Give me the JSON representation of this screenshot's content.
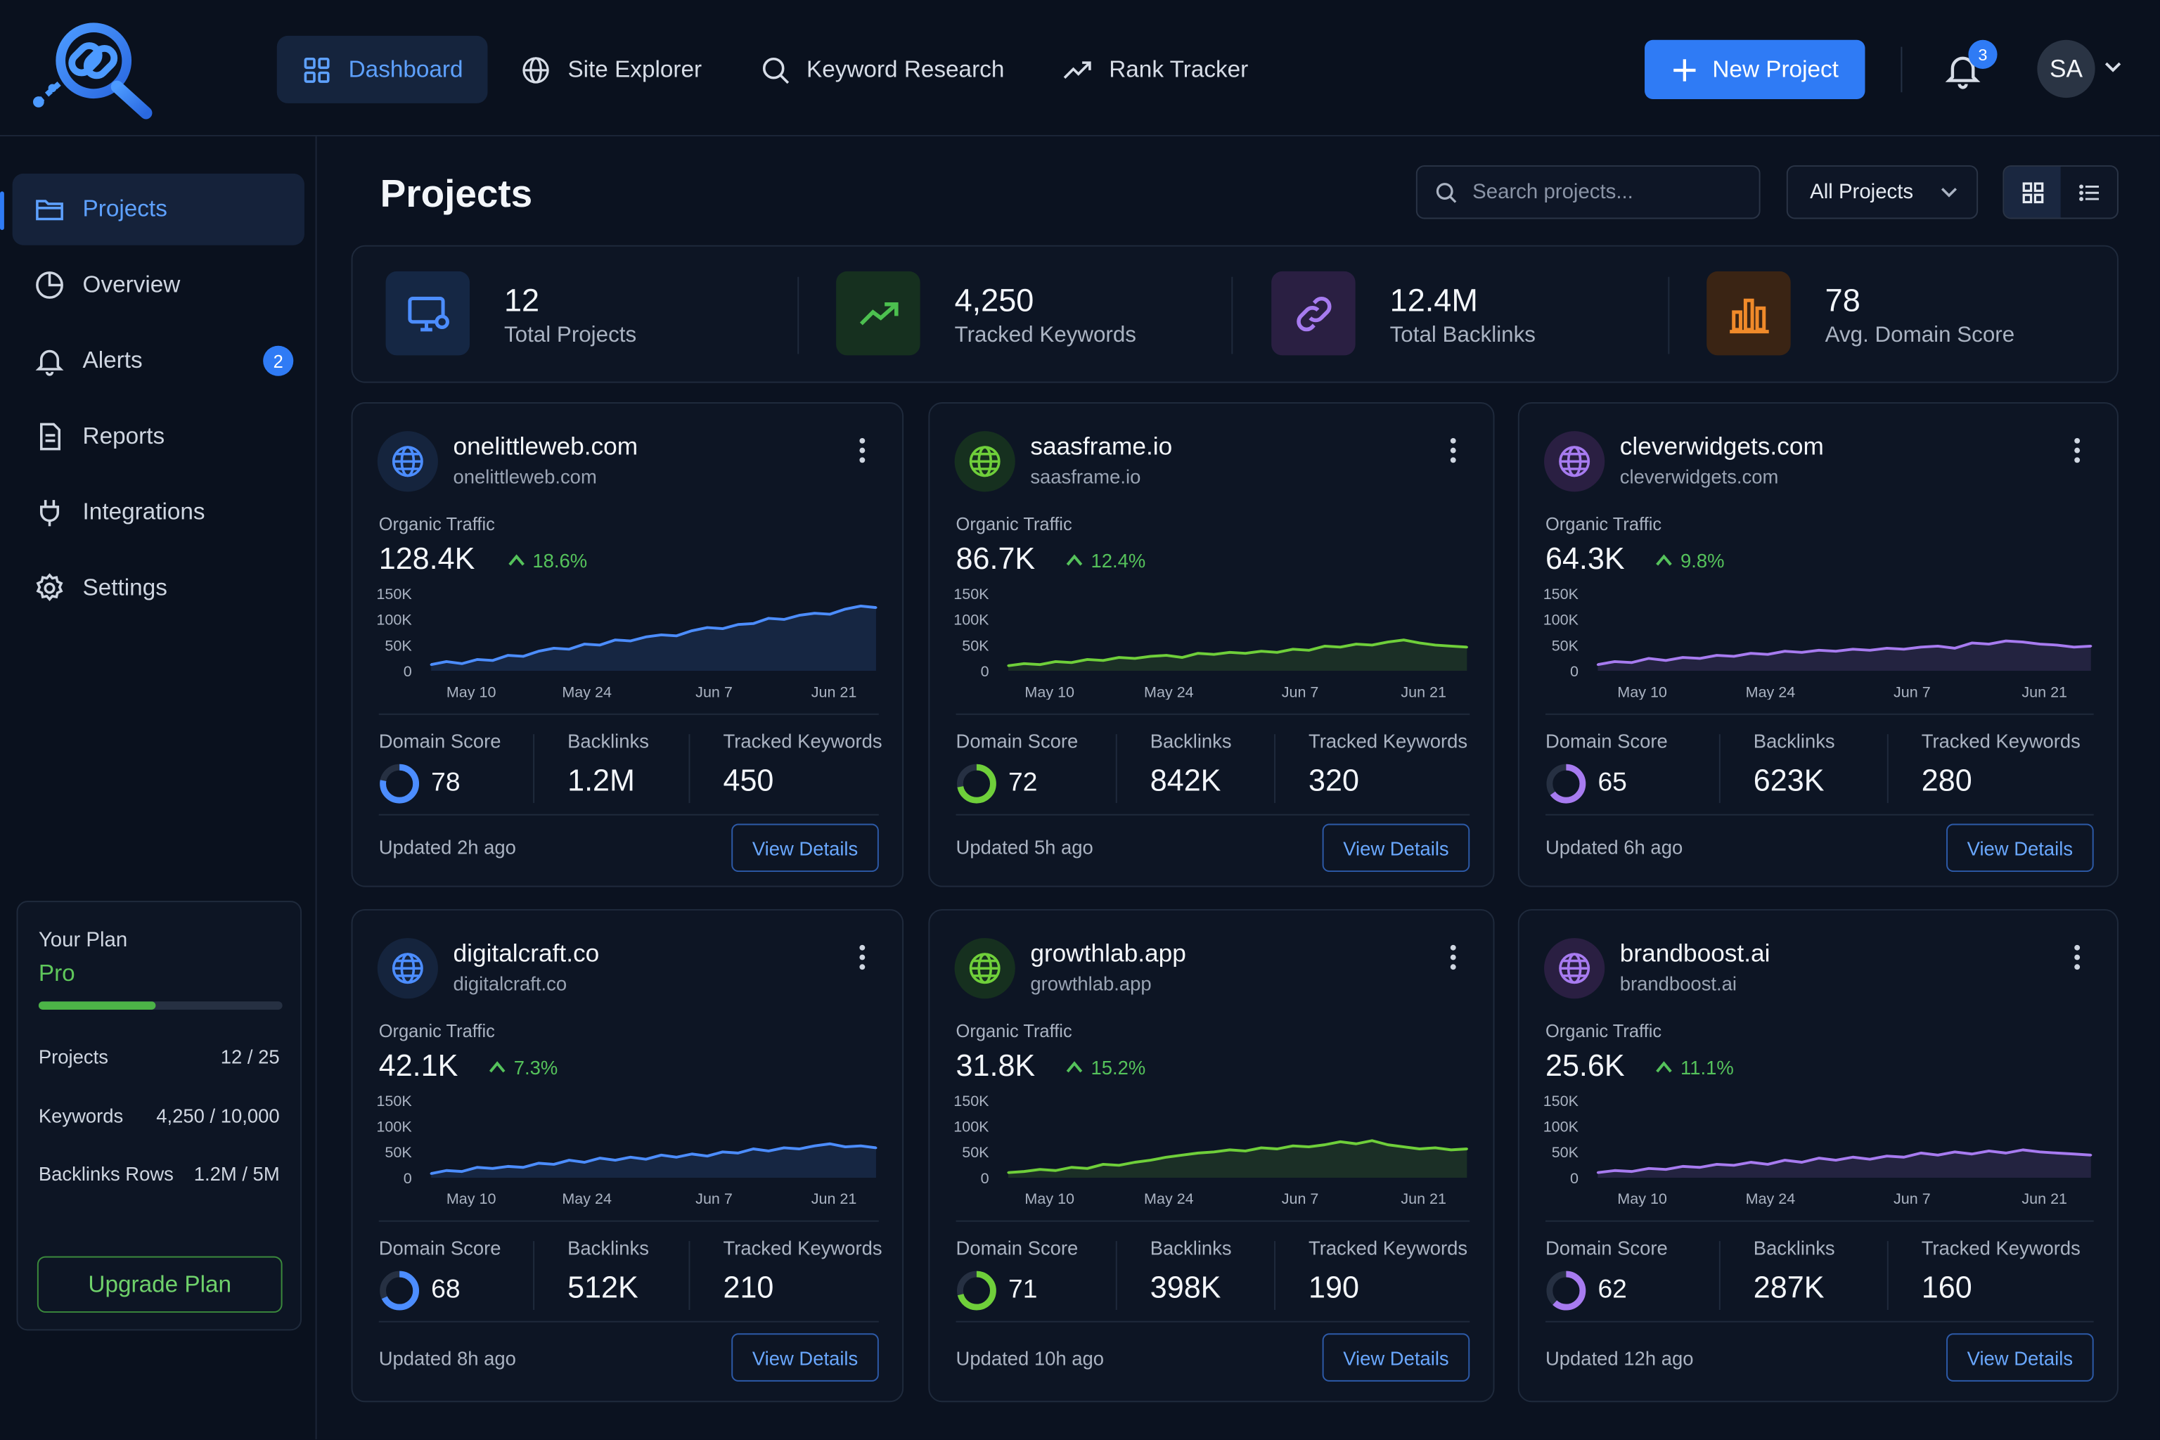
{
  "nav": {
    "items": [
      {
        "label": "Dashboard",
        "icon": "grid-icon"
      },
      {
        "label": "Site Explorer",
        "icon": "globe-icon"
      },
      {
        "label": "Keyword Research",
        "icon": "search-icon"
      },
      {
        "label": "Rank Tracker",
        "icon": "trending-up-icon"
      }
    ],
    "new_project_label": "New Project",
    "notification_count": "3",
    "avatar_initials": "SA"
  },
  "sidebar": {
    "items": [
      {
        "label": "Projects",
        "icon": "folder-icon"
      },
      {
        "label": "Overview",
        "icon": "pie-chart-icon"
      },
      {
        "label": "Alerts",
        "icon": "bell-icon",
        "badge": "2"
      },
      {
        "label": "Reports",
        "icon": "document-icon"
      },
      {
        "label": "Integrations",
        "icon": "plug-icon"
      },
      {
        "label": "Settings",
        "icon": "gear-icon"
      }
    ],
    "plan": {
      "title": "Your Plan",
      "name": "Pro",
      "usage_fraction": 0.48,
      "rows": [
        {
          "label": "Projects",
          "value": "12 / 25"
        },
        {
          "label": "Keywords",
          "value": "4,250 / 10,000"
        },
        {
          "label": "Backlinks Rows",
          "value": "1.2M / 5M"
        }
      ],
      "upgrade_label": "Upgrade Plan"
    }
  },
  "main": {
    "title": "Projects",
    "search_placeholder": "Search projects...",
    "filter_value": "All Projects",
    "stats": [
      {
        "value": "12",
        "label": "Total Projects",
        "icon": "monitor-icon",
        "color": "#4c8dff"
      },
      {
        "value": "4,250",
        "label": "Tracked Keywords",
        "icon": "trending-up-icon",
        "color": "#4cc04f"
      },
      {
        "value": "12.4M",
        "label": "Total Backlinks",
        "icon": "link-icon",
        "color": "#a77bf0"
      },
      {
        "value": "78",
        "label": "Avg. Domain Score",
        "icon": "bar-chart-icon",
        "color": "#f08a2a"
      }
    ]
  },
  "card_labels": {
    "organic_traffic": "Organic Traffic",
    "domain_score": "Domain Score",
    "backlinks": "Backlinks",
    "tracked_keywords": "Tracked Keywords",
    "view_details": "View Details",
    "y_ticks": [
      "150K",
      "100K",
      "50K",
      "0"
    ],
    "x_ticks": [
      "May 10",
      "May 24",
      "Jun 7",
      "Jun 21"
    ]
  },
  "colors": {
    "blue": "#4c8dff",
    "green": "#6fcf3a",
    "purple": "#a77bf0",
    "accent": "#2f7bf5"
  },
  "projects": [
    {
      "name": "onelittleweb.com",
      "domain": "onelittleweb.com",
      "traffic": "128.4K",
      "change": "18.6%",
      "domain_score": "78",
      "score": 78,
      "backlinks": "1.2M",
      "keywords": "450",
      "updated": "Updated 2h ago",
      "color": "#4c8dff"
    },
    {
      "name": "saasframe.io",
      "domain": "saasframe.io",
      "traffic": "86.7K",
      "change": "12.4%",
      "domain_score": "72",
      "score": 72,
      "backlinks": "842K",
      "keywords": "320",
      "updated": "Updated 5h ago",
      "color": "#6fcf3a"
    },
    {
      "name": "cleverwidgets.com",
      "domain": "cleverwidgets.com",
      "traffic": "64.3K",
      "change": "9.8%",
      "domain_score": "65",
      "score": 65,
      "backlinks": "623K",
      "keywords": "280",
      "updated": "Updated 6h ago",
      "color": "#a77bf0"
    },
    {
      "name": "digitalcraft.co",
      "domain": "digitalcraft.co",
      "traffic": "42.1K",
      "change": "7.3%",
      "domain_score": "68",
      "score": 68,
      "backlinks": "512K",
      "keywords": "210",
      "updated": "Updated 8h ago",
      "color": "#4c8dff"
    },
    {
      "name": "growthlab.app",
      "domain": "growthlab.app",
      "traffic": "31.8K",
      "change": "15.2%",
      "domain_score": "71",
      "score": 71,
      "backlinks": "398K",
      "keywords": "190",
      "updated": "Updated 10h ago",
      "color": "#6fcf3a"
    },
    {
      "name": "brandboost.ai",
      "domain": "brandboost.ai",
      "traffic": "25.6K",
      "change": "11.1%",
      "domain_score": "62",
      "score": 62,
      "backlinks": "287K",
      "keywords": "160",
      "updated": "Updated 12h ago",
      "color": "#a77bf0"
    }
  ],
  "chart_data": [
    {
      "type": "area",
      "series": [
        {
          "values": [
            12,
            18,
            14,
            22,
            20,
            30,
            28,
            38,
            44,
            42,
            52,
            50,
            60,
            58,
            66,
            70,
            68,
            78,
            84,
            82,
            90,
            92,
            102,
            100,
            108,
            112,
            110,
            120,
            126,
            123
          ]
        }
      ],
      "ylim": [
        0,
        150000
      ],
      "unit": "K"
    },
    {
      "type": "area",
      "series": [
        {
          "values": [
            10,
            14,
            12,
            18,
            16,
            22,
            20,
            26,
            24,
            28,
            30,
            26,
            34,
            32,
            36,
            34,
            38,
            36,
            42,
            40,
            48,
            46,
            52,
            50,
            56,
            60,
            54,
            50,
            48,
            46
          ]
        }
      ],
      "ylim": [
        0,
        150000
      ],
      "unit": "K"
    },
    {
      "type": "area",
      "series": [
        {
          "values": [
            12,
            18,
            16,
            24,
            20,
            26,
            24,
            30,
            28,
            34,
            32,
            38,
            36,
            40,
            38,
            42,
            40,
            44,
            42,
            46,
            48,
            44,
            54,
            52,
            58,
            56,
            52,
            50,
            46,
            48
          ]
        }
      ],
      "ylim": [
        0,
        150000
      ],
      "unit": "K"
    },
    {
      "type": "area",
      "series": [
        {
          "values": [
            8,
            14,
            12,
            20,
            18,
            22,
            20,
            28,
            26,
            34,
            30,
            38,
            34,
            40,
            36,
            44,
            40,
            46,
            42,
            50,
            48,
            56,
            52,
            58,
            56,
            62,
            66,
            60,
            62,
            58
          ]
        }
      ],
      "ylim": [
        0,
        150000
      ],
      "unit": "K"
    },
    {
      "type": "area",
      "series": [
        {
          "values": [
            10,
            12,
            16,
            14,
            20,
            18,
            26,
            24,
            30,
            34,
            40,
            44,
            48,
            50,
            54,
            52,
            58,
            56,
            62,
            60,
            64,
            70,
            66,
            72,
            64,
            60,
            56,
            58,
            54,
            56
          ]
        }
      ],
      "ylim": [
        0,
        150000
      ],
      "unit": "K"
    },
    {
      "type": "area",
      "series": [
        {
          "values": [
            10,
            14,
            12,
            18,
            16,
            22,
            20,
            26,
            24,
            30,
            26,
            34,
            30,
            38,
            34,
            40,
            36,
            42,
            40,
            48,
            44,
            50,
            46,
            52,
            48,
            54,
            50,
            48,
            46,
            44
          ]
        }
      ],
      "ylim": [
        0,
        150000
      ],
      "unit": "K"
    }
  ]
}
